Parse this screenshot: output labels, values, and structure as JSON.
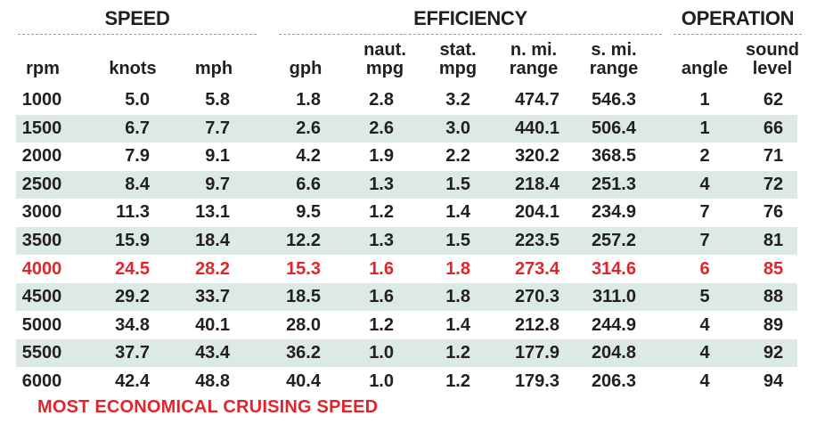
{
  "groups": {
    "speed": "SPEED",
    "efficiency": "EFFICIENCY",
    "operation": "OPERATION"
  },
  "columns": {
    "rpm": "rpm",
    "knots": "knots",
    "mph": "mph",
    "gph": "gph",
    "naut_mpg_1": "naut.",
    "naut_mpg_2": "mpg",
    "stat_mpg_1": "stat.",
    "stat_mpg_2": "mpg",
    "n_range_1": "n. mi.",
    "n_range_2": "range",
    "s_range_1": "s. mi.",
    "s_range_2": "range",
    "angle": "angle",
    "sound_1": "sound",
    "sound_2": "level"
  },
  "rows": [
    {
      "rpm": "1000",
      "knots": "5.0",
      "mph": "5.8",
      "gph": "1.8",
      "naut_mpg": "2.8",
      "stat_mpg": "3.2",
      "n_range": "474.7",
      "s_range": "546.3",
      "angle": "1",
      "sound": "62"
    },
    {
      "rpm": "1500",
      "knots": "6.7",
      "mph": "7.7",
      "gph": "2.6",
      "naut_mpg": "2.6",
      "stat_mpg": "3.0",
      "n_range": "440.1",
      "s_range": "506.4",
      "angle": "1",
      "sound": "66"
    },
    {
      "rpm": "2000",
      "knots": "7.9",
      "mph": "9.1",
      "gph": "4.2",
      "naut_mpg": "1.9",
      "stat_mpg": "2.2",
      "n_range": "320.2",
      "s_range": "368.5",
      "angle": "2",
      "sound": "71"
    },
    {
      "rpm": "2500",
      "knots": "8.4",
      "mph": "9.7",
      "gph": "6.6",
      "naut_mpg": "1.3",
      "stat_mpg": "1.5",
      "n_range": "218.4",
      "s_range": "251.3",
      "angle": "4",
      "sound": "72"
    },
    {
      "rpm": "3000",
      "knots": "11.3",
      "mph": "13.1",
      "gph": "9.5",
      "naut_mpg": "1.2",
      "stat_mpg": "1.4",
      "n_range": "204.1",
      "s_range": "234.9",
      "angle": "7",
      "sound": "76"
    },
    {
      "rpm": "3500",
      "knots": "15.9",
      "mph": "18.4",
      "gph": "12.2",
      "naut_mpg": "1.3",
      "stat_mpg": "1.5",
      "n_range": "223.5",
      "s_range": "257.2",
      "angle": "7",
      "sound": "81"
    },
    {
      "rpm": "4000",
      "knots": "24.5",
      "mph": "28.2",
      "gph": "15.3",
      "naut_mpg": "1.6",
      "stat_mpg": "1.8",
      "n_range": "273.4",
      "s_range": "314.6",
      "angle": "6",
      "sound": "85"
    },
    {
      "rpm": "4500",
      "knots": "29.2",
      "mph": "33.7",
      "gph": "18.5",
      "naut_mpg": "1.6",
      "stat_mpg": "1.8",
      "n_range": "270.3",
      "s_range": "311.0",
      "angle": "5",
      "sound": "88"
    },
    {
      "rpm": "5000",
      "knots": "34.8",
      "mph": "40.1",
      "gph": "28.0",
      "naut_mpg": "1.2",
      "stat_mpg": "1.4",
      "n_range": "212.8",
      "s_range": "244.9",
      "angle": "4",
      "sound": "89"
    },
    {
      "rpm": "5500",
      "knots": "37.7",
      "mph": "43.4",
      "gph": "36.2",
      "naut_mpg": "1.0",
      "stat_mpg": "1.2",
      "n_range": "177.9",
      "s_range": "204.8",
      "angle": "4",
      "sound": "92"
    },
    {
      "rpm": "6000",
      "knots": "42.4",
      "mph": "48.8",
      "gph": "40.4",
      "naut_mpg": "1.0",
      "stat_mpg": "1.2",
      "n_range": "179.3",
      "s_range": "206.3",
      "angle": "4",
      "sound": "94"
    }
  ],
  "highlight_row_rpm": "4000",
  "highlight_color": "#e2242b",
  "stripe_color": "#dde9e5",
  "footnote": "MOST ECONOMICAL CRUISING SPEED"
}
